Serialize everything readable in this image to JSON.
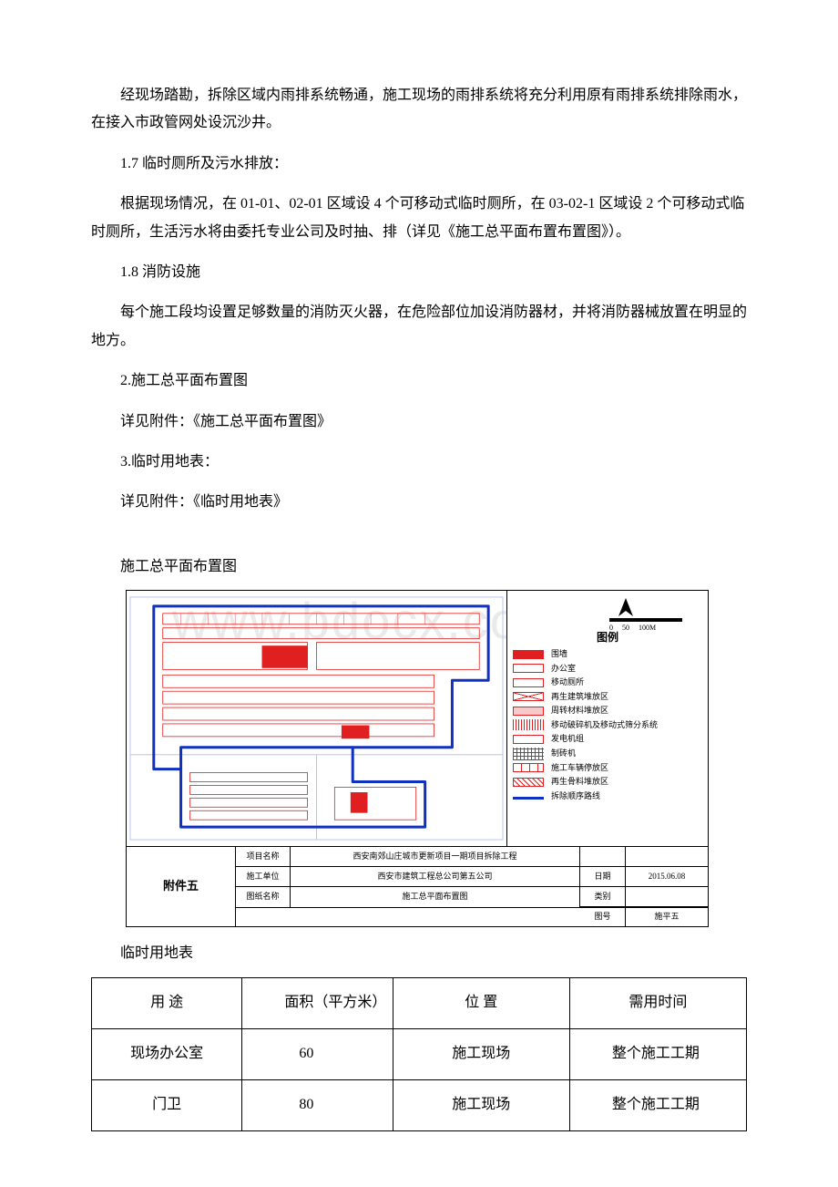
{
  "paragraphs": {
    "p1": "经现场踏勘，拆除区域内雨排系统畅通，施工现场的雨排系统将充分利用原有雨排系统排除雨水，在接入市政管网处设沉沙井。",
    "p2": "1.7 临时厕所及污水排放：",
    "p3": "根据现场情况，在 01-01、02-01 区域设 4 个可移动式临时厕所，在 03-02-1 区域设 2 个可移动式临时厕所，生活污水将由委托专业公司及时抽、排（详见《施工总平面布置布置图》）。",
    "p4": "1.8 消防设施",
    "p5": "每个施工段均设置足够数量的消防灭火器，在危险部位加设消防器材，并将消防器械放置在明显的地方。",
    "p6": "2.施工总平面布置图",
    "p7": "详见附件：《施工总平面布置图》",
    "p8": "3.临时用地表：",
    "p9": "详见附件：《临时用地表》"
  },
  "diagram": {
    "title": "施工总平面布置图",
    "watermark": "www.bdocx.com",
    "scale_labels": [
      "0",
      "50",
      "100M"
    ],
    "legend_title": "图例",
    "legend": [
      {
        "sym": "red-fill",
        "label": "围墙"
      },
      {
        "sym": "red-outline",
        "label": "办公室"
      },
      {
        "sym": "red-outline",
        "label": "移动厕所"
      },
      {
        "sym": "red-x",
        "label": "再生建筑堆放区"
      },
      {
        "sym": "pink-fill",
        "label": "周转材料堆放区"
      },
      {
        "sym": "red-vstripes",
        "label": "移动破碎机及移动式筛分系统"
      },
      {
        "sym": "red-outline",
        "label": "发电机组"
      },
      {
        "sym": "red-grid",
        "label": "制砖机"
      },
      {
        "sym": "red-cols",
        "label": "施工车辆停放区"
      },
      {
        "sym": "red-diag",
        "label": "再生骨料堆放区"
      },
      {
        "sym": "blue-line",
        "label": "拆除顺序路线"
      }
    ],
    "titleblock": {
      "attachment": "附件五",
      "rows": [
        {
          "c1": "项目名称",
          "c2": "西安南郊山庄城市更新项目一期项目拆除工程",
          "c3": "",
          "c4": ""
        },
        {
          "c1": "施工单位",
          "c2": "西安市建筑工程总公司第五公司",
          "c3": "日期",
          "c4": "2015.06.08"
        },
        {
          "c1": "图纸名称",
          "c2": "施工总平面布置图",
          "c3": "类别",
          "c4": ""
        }
      ],
      "last_row_extra": {
        "c3b": "图号",
        "c4b": "施平五"
      }
    },
    "map": {
      "boundary_color": "#1030c0",
      "detail_color": "#e02020",
      "light_color": "#b8c6f0"
    }
  },
  "land_table": {
    "title": "临时用地表",
    "headers": [
      "用 途",
      "面积（平方米）",
      "位 置",
      "需用时间"
    ],
    "rows": [
      [
        "现场办公室",
        "60",
        "施工现场",
        "整个施工工期"
      ],
      [
        "门卫",
        "80",
        "施工现场",
        "整个施工工期"
      ]
    ]
  }
}
